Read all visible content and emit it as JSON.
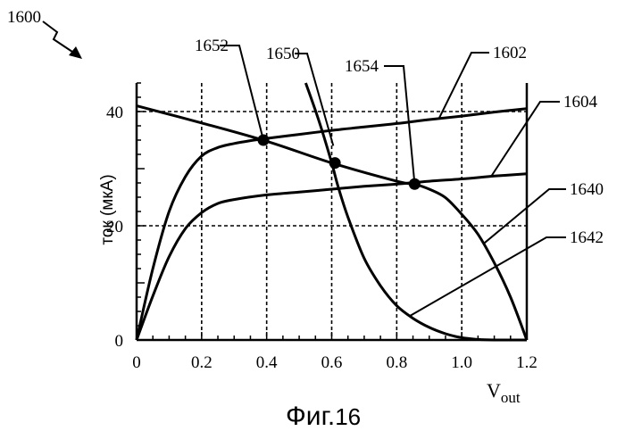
{
  "figure": {
    "ref_number": "1600",
    "caption_prefix": "Фиг.",
    "caption_number": "16"
  },
  "chart_data": {
    "type": "line",
    "title": "",
    "ylabel": "ток (мкА)",
    "xlabel_main": "V",
    "xlabel_sub": "out",
    "xlim": [
      0,
      1.2
    ],
    "ylim": [
      0,
      45
    ],
    "x_ticks": [
      0,
      0.2,
      0.4,
      0.6,
      0.8,
      1.0,
      1.2
    ],
    "x_tick_labels": [
      "0",
      "0.2",
      "0.4",
      "0.6",
      "0.8",
      "1.0",
      "1.2"
    ],
    "y_ticks": [
      0,
      20,
      40
    ],
    "y_tick_labels": [
      "0",
      "20",
      "40"
    ],
    "dashed_grid_x": [
      0.2,
      0.4,
      0.6,
      0.8,
      1.0
    ],
    "dashed_grid_y": [
      20,
      40
    ],
    "series": [
      {
        "name": "1602",
        "x": [
          0.0,
          0.05,
          0.1,
          0.15,
          0.2,
          0.25,
          0.3,
          0.35,
          0.4,
          0.5,
          0.6,
          0.7,
          0.8,
          0.9,
          1.0,
          1.1,
          1.2
        ],
        "y": [
          0.0,
          12.5,
          22.5,
          28.6,
          32.2,
          33.7,
          34.4,
          34.9,
          35.3,
          36.0,
          36.7,
          37.3,
          37.9,
          38.6,
          39.2,
          39.9,
          40.5
        ]
      },
      {
        "name": "1604",
        "x": [
          0.0,
          0.05,
          0.1,
          0.15,
          0.2,
          0.25,
          0.3,
          0.4,
          0.5,
          0.6,
          0.7,
          0.8,
          0.9,
          1.0,
          1.1,
          1.2
        ],
        "y": [
          0.0,
          7.7,
          14.6,
          19.5,
          22.3,
          23.9,
          24.6,
          25.4,
          25.9,
          26.4,
          26.9,
          27.3,
          27.8,
          28.2,
          28.7,
          29.1
        ]
      },
      {
        "name": "1640",
        "x": [
          0.0,
          0.2,
          0.4,
          0.6,
          0.8,
          0.86,
          0.9,
          0.95,
          1.0,
          1.05,
          1.1,
          1.15,
          1.2
        ],
        "y": [
          41.0,
          38.0,
          34.8,
          31.0,
          27.8,
          27.2,
          26.4,
          24.9,
          22.0,
          18.5,
          13.5,
          7.5,
          0.0
        ]
      },
      {
        "name": "1642",
        "x": [
          0.52,
          0.56,
          0.6,
          0.62,
          0.65,
          0.7,
          0.75,
          0.8,
          0.85,
          0.9,
          0.95,
          1.0,
          1.05,
          1.1,
          1.2
        ],
        "y": [
          45.0,
          38.5,
          31.0,
          26.8,
          21.5,
          14.3,
          9.5,
          6.0,
          3.8,
          2.2,
          1.1,
          0.4,
          0.1,
          0.0,
          0.0
        ]
      }
    ],
    "points": [
      {
        "name": "1652",
        "x": 0.39,
        "y": 35.0
      },
      {
        "name": "1650",
        "x": 0.61,
        "y": 31.0
      },
      {
        "name": "1654",
        "x": 0.855,
        "y": 27.3
      }
    ],
    "callouts": [
      {
        "label": "1652",
        "target_x": 0.39,
        "target_y": 35.0
      },
      {
        "label": "1650",
        "target_x": 0.605,
        "target_y": 34.0
      },
      {
        "label": "1654",
        "target_x": 0.855,
        "target_y": 27.3
      },
      {
        "label": "1602",
        "target_x": 0.93,
        "target_y": 38.8
      },
      {
        "label": "1604",
        "target_x": 1.09,
        "target_y": 28.6
      },
      {
        "label": "1640",
        "target_x": 1.07,
        "target_y": 17.0
      },
      {
        "label": "1642",
        "target_x": 0.84,
        "target_y": 4.2
      }
    ]
  }
}
